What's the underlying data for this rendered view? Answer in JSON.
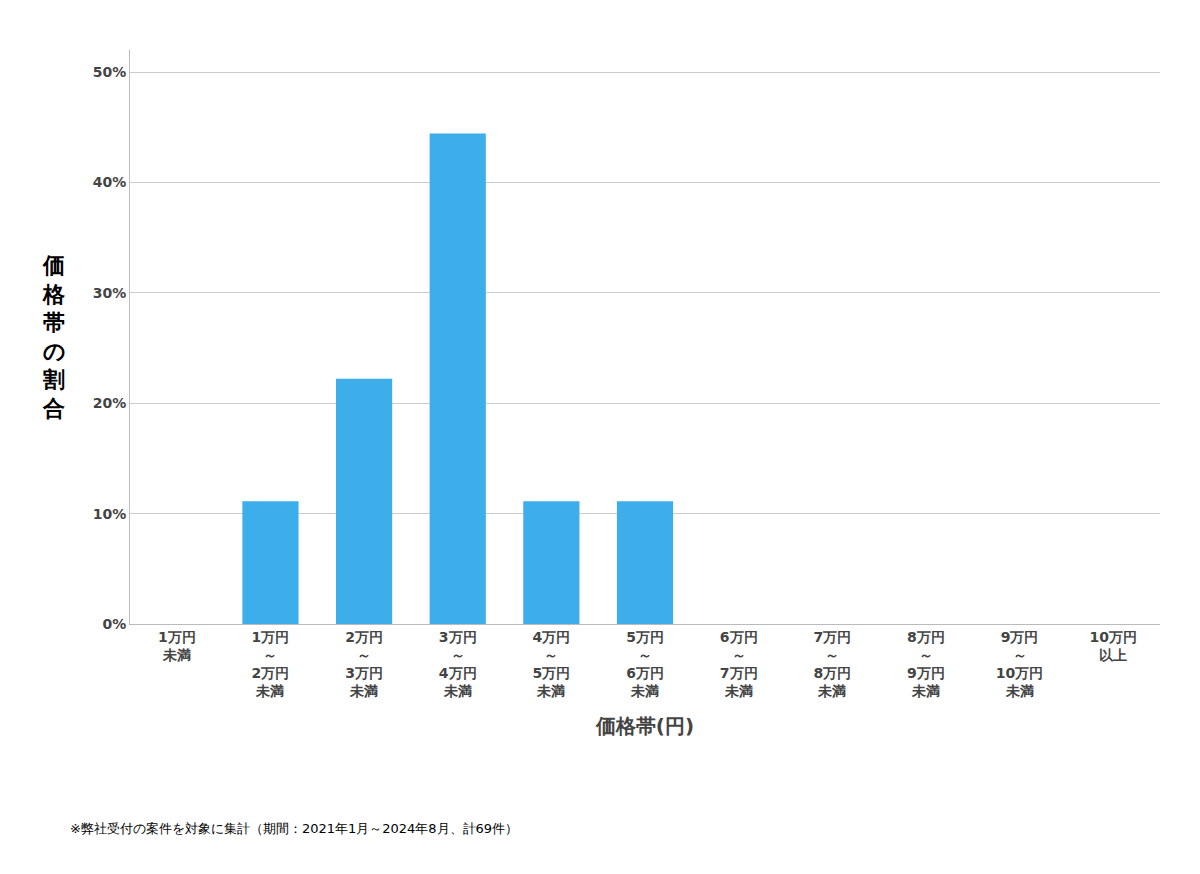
{
  "chart_data": {
    "type": "bar",
    "categories": [
      "1万円\n未満",
      "1万円\n～\n2万円\n未満",
      "2万円\n～\n3万円\n未満",
      "3万円\n～\n4万円\n未満",
      "4万円\n～\n5万円\n未満",
      "5万円\n～\n6万円\n未満",
      "6万円\n～\n7万円\n未満",
      "7万円\n～\n8万円\n未満",
      "8万円\n～\n9万円\n未満",
      "9万円\n～\n10万円\n未満",
      "10万円\n以上"
    ],
    "values": [
      0.0,
      0.1111,
      0.2222,
      0.4444,
      0.1111,
      0.1111,
      0.0,
      0.0,
      0.0,
      0.0,
      0.0
    ],
    "color": "#3daee9",
    "xlabel": "価格帯(円)",
    "ylabel": "価格帯の割合",
    "annotations": [
      "※弊社受付の案件を対象に集計（期間：2021年1月～2024年8月、計69件）"
    ],
    "ylim": [
      0,
      0.52
    ],
    "yticks": [
      {
        "value": 0.0,
        "label": "0%"
      },
      {
        "value": 0.1,
        "label": "10%"
      },
      {
        "value": 0.2,
        "label": "20%"
      },
      {
        "value": 0.3,
        "label": "30%"
      },
      {
        "value": 0.4,
        "label": "40%"
      },
      {
        "value": 0.5,
        "label": "50%"
      }
    ],
    "grid": true
  }
}
